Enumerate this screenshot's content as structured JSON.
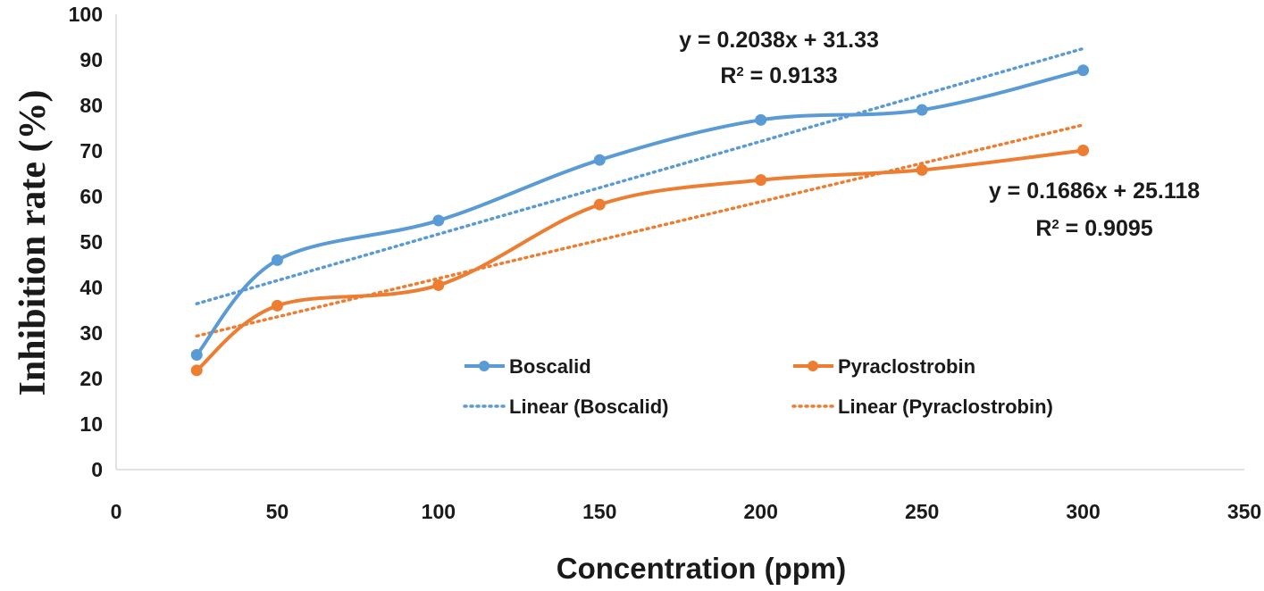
{
  "chart_data": {
    "type": "line",
    "title": "",
    "xlabel": "Concentration (ppm)",
    "ylabel": "Inhibition rate (%)",
    "xlim": [
      0,
      350
    ],
    "ylim": [
      0,
      100
    ],
    "xticks": [
      0,
      50,
      100,
      150,
      200,
      250,
      300,
      350
    ],
    "yticks": [
      0,
      10,
      20,
      30,
      40,
      50,
      60,
      70,
      80,
      90,
      100
    ],
    "grid": false,
    "legend_position": "center",
    "x": [
      25,
      50,
      100,
      150,
      200,
      250,
      300
    ],
    "series": [
      {
        "name": "Boscalid",
        "color": "#5B9BD5",
        "values": [
          25.2,
          46.0,
          54.7,
          68.0,
          76.8,
          79.0,
          87.7
        ],
        "trendline": {
          "name": "Linear (Boscalid)",
          "slope": 0.2038,
          "intercept": 31.33,
          "equation": "y = 0.2038x + 31.33",
          "r2_prefix": "R",
          "r2_sup": "2",
          "r2_value": " = 0.9133"
        }
      },
      {
        "name": "Pyraclostrobin",
        "color": "#ED7D31",
        "values": [
          21.8,
          36.0,
          40.5,
          58.2,
          63.6,
          65.8,
          70.1
        ],
        "trendline": {
          "name": "Linear (Pyraclostrobin)",
          "slope": 0.1686,
          "intercept": 25.118,
          "equation": "y = 0.1686x + 25.118",
          "r2_prefix": "R",
          "r2_sup": "2",
          "r2_value": " = 0.9095"
        }
      }
    ]
  }
}
